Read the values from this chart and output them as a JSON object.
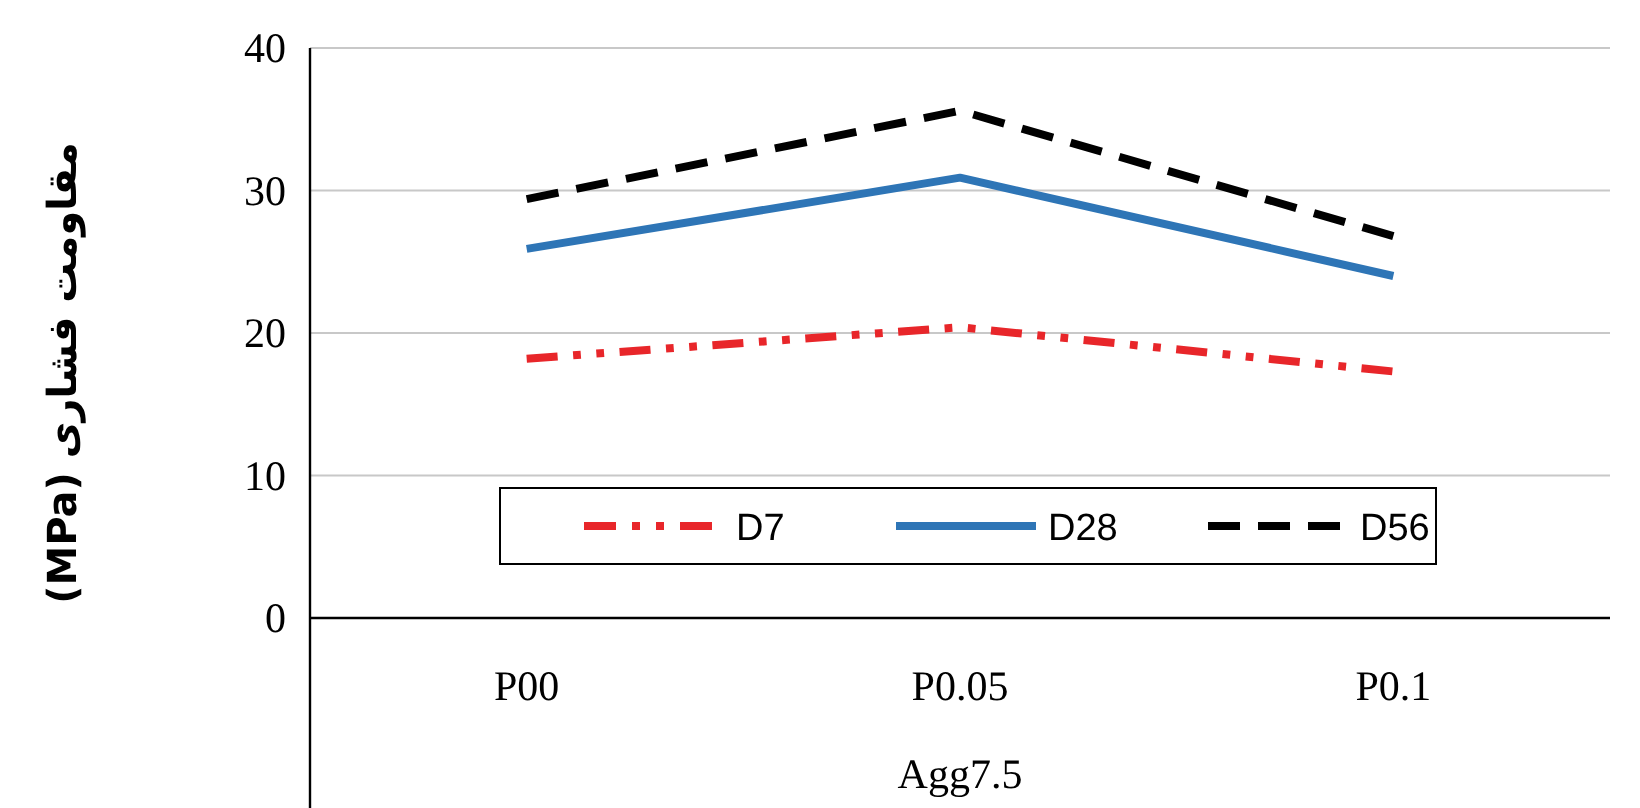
{
  "chart_data": {
    "type": "line",
    "ylabel": "مقاومت فشاری (MPa)",
    "xlabel": "Agg7.5",
    "categories": [
      "P00",
      "P0.05",
      "P0.1"
    ],
    "series": [
      {
        "name": "D7",
        "color": "#e8262a",
        "line_style": "dotted",
        "values": [
          18.2,
          20.4,
          17.3
        ]
      },
      {
        "name": "D28",
        "color": "#2e75b6",
        "line_style": "solid",
        "values": [
          25.9,
          30.9,
          24.0
        ]
      },
      {
        "name": "D56",
        "color": "#000000",
        "line_style": "dashed",
        "values": [
          29.4,
          35.6,
          26.8
        ]
      }
    ],
    "ylim": [
      0,
      40
    ],
    "yticks": [
      0,
      10,
      20,
      30,
      40
    ],
    "grid": "y",
    "legend": "bottom",
    "marker": "none"
  }
}
